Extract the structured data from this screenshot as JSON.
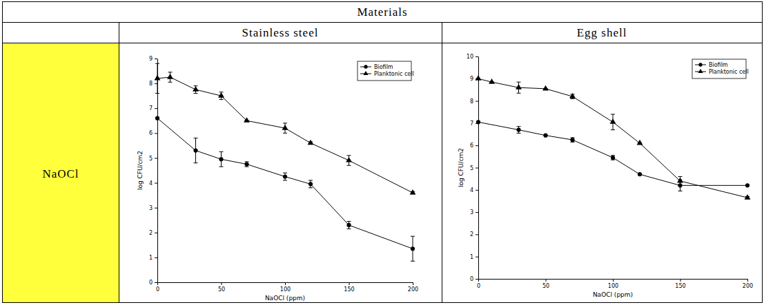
{
  "table": {
    "title": "Materials",
    "columns": [
      "Stainless steel",
      "Egg shell"
    ],
    "row_label": "NaOCl"
  },
  "chart_data": [
    {
      "type": "line",
      "x_label": "NaOCl (ppm)",
      "y_label": "log CFU/cm2",
      "xlim": [
        0,
        200
      ],
      "xticks": [
        0,
        50,
        100,
        150,
        200
      ],
      "ylim": [
        0,
        9
      ],
      "yticks": [
        0,
        1,
        2,
        3,
        4,
        5,
        6,
        7,
        8,
        9
      ],
      "legend": "upper right",
      "grid": false,
      "series": [
        {
          "name": "Biofilm",
          "color": "#000000",
          "marker": "circle",
          "line_style": "solid",
          "x": [
            0,
            30,
            50,
            70,
            100,
            120,
            150,
            200
          ],
          "values": [
            6.6,
            5.3,
            4.95,
            4.75,
            4.25,
            3.95,
            2.3,
            1.35
          ],
          "errors": [
            0,
            0.5,
            0.3,
            0.1,
            0.15,
            0.15,
            0.15,
            0.5
          ]
        },
        {
          "name": "Planktonic cell",
          "color": "#000000",
          "marker": "triangle",
          "line_style": "solid",
          "x": [
            0,
            10,
            30,
            50,
            70,
            100,
            120,
            150,
            200
          ],
          "values": [
            8.2,
            8.25,
            7.75,
            7.5,
            6.5,
            6.2,
            5.6,
            4.9,
            3.6
          ],
          "errors": [
            0.6,
            0.2,
            0.15,
            0.15,
            0,
            0.2,
            0.05,
            0.2,
            0.05
          ]
        }
      ]
    },
    {
      "type": "line",
      "x_label": "NaOCl (ppm)",
      "y_label": "log CFU/cm2",
      "xlim": [
        0,
        200
      ],
      "xticks": [
        0,
        50,
        100,
        150,
        200
      ],
      "ylim": [
        0,
        10
      ],
      "yticks": [
        0,
        1,
        2,
        3,
        4,
        5,
        6,
        7,
        8,
        9,
        10
      ],
      "legend": "upper right",
      "grid": false,
      "series": [
        {
          "name": "Biofilm",
          "color": "#000000",
          "marker": "circle",
          "line_style": "solid",
          "x": [
            0,
            30,
            50,
            70,
            100,
            120,
            150,
            200
          ],
          "values": [
            7.05,
            6.7,
            6.45,
            6.25,
            5.45,
            4.7,
            4.2,
            4.2
          ],
          "errors": [
            0,
            0.15,
            0,
            0.1,
            0.1,
            0,
            0.25,
            0
          ]
        },
        {
          "name": "Planktonic cell",
          "color": "#000000",
          "marker": "triangle",
          "line_style": "solid",
          "x": [
            0,
            10,
            30,
            50,
            70,
            100,
            120,
            150,
            200
          ],
          "values": [
            9.0,
            8.85,
            8.6,
            8.55,
            8.2,
            7.05,
            6.1,
            4.4,
            3.65
          ],
          "errors": [
            0,
            0,
            0.25,
            0,
            0.1,
            0.35,
            0,
            0.2,
            0.05
          ]
        }
      ]
    }
  ]
}
